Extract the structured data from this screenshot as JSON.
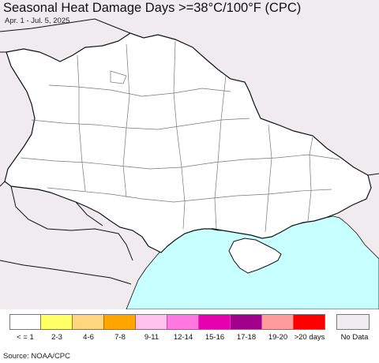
{
  "header": {
    "title": "Seasonal Heat Damage Days >=38°C/100°F (CPC)",
    "subtitle": "Apr. 1 - Jul. 5, 2025"
  },
  "map": {
    "colors": {
      "land_no_data": "#efebef",
      "country": "#ffffff",
      "sea": "#c8ffff",
      "border": "#111111",
      "oblast_border": "#777777"
    },
    "all_regions_category": "<= 1"
  },
  "legend": {
    "items": [
      {
        "label": "< = 1",
        "color": "#ffffff"
      },
      {
        "label": "2-3",
        "color": "#ffff66"
      },
      {
        "label": "4-6",
        "color": "#ffd580"
      },
      {
        "label": "7-8",
        "color": "#ffa500"
      },
      {
        "label": "9-11",
        "color": "#ffc0ee"
      },
      {
        "label": "12-14",
        "color": "#ff77e0"
      },
      {
        "label": "15-16",
        "color": "#e600b0"
      },
      {
        "label": "17-18",
        "color": "#a0008c"
      },
      {
        "label": "19-20",
        "color": "#ff9b9b"
      },
      {
        "label": ">20 days",
        "color": "#ff0000"
      }
    ],
    "no_data": {
      "label": "No Data",
      "color": "#efebef"
    }
  },
  "footer": {
    "source": "Source: NOAA/CPC"
  }
}
